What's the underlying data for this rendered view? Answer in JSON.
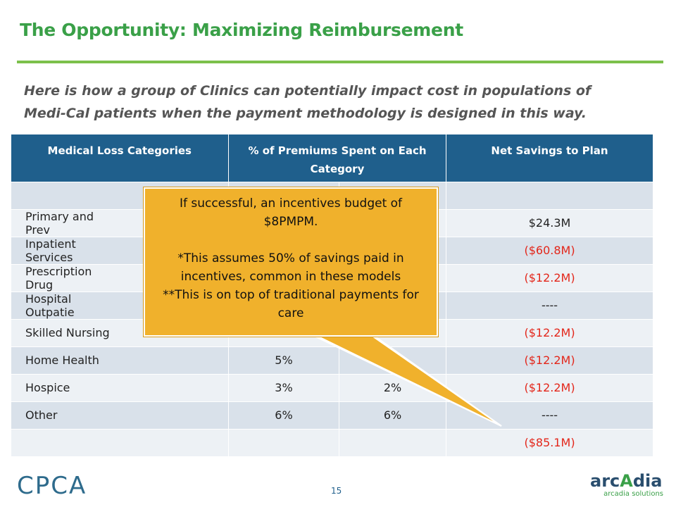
{
  "slide": {
    "title": "The Opportunity: Maximizing Reimbursement",
    "intro_line1": "Here is how a group of Clinics can potentially impact cost in populations of",
    "intro_line2": "Medi-Cal patients when the payment methodology is designed in this way.",
    "page_number": "15",
    "colors": {
      "title": "#3aa048",
      "rule": "#7cc04b",
      "header": "#1f5f8c",
      "negative": "#e3261a",
      "callout": "#f0b12c"
    }
  },
  "table": {
    "headers": {
      "col1": "Medical Loss Categories",
      "col2": "% of Premiums Spent on Each Category",
      "col3": "",
      "col4": "Net Savings to Plan"
    },
    "rows": [
      {
        "cat": "",
        "pct": "",
        "pct2": "",
        "savings": ""
      },
      {
        "cat": "Primary and Prev",
        "pct": "",
        "pct2": "",
        "savings": "$24.3M"
      },
      {
        "cat": "Inpatient Services",
        "pct": "",
        "pct2": "",
        "savings": "($60.8M)"
      },
      {
        "cat": "Prescription Drug",
        "pct": "",
        "pct2": "",
        "savings": "($12.2M)"
      },
      {
        "cat": "Hospital Outpatie",
        "pct": "",
        "pct2": "",
        "savings": "----"
      },
      {
        "cat": "Skilled Nursing",
        "pct": "",
        "pct2": "",
        "savings": "($12.2M)"
      },
      {
        "cat": "Home Health",
        "pct": "5%",
        "pct2": "",
        "savings": "($12.2M)"
      },
      {
        "cat": "Hospice",
        "pct": "3%",
        "pct2": "2%",
        "savings": "($12.2M)"
      },
      {
        "cat": "Other",
        "pct": "6%",
        "pct2": "6%",
        "savings": "----"
      },
      {
        "cat": "",
        "pct": "",
        "pct2": "",
        "savings": "($85.1M)"
      }
    ]
  },
  "callout": {
    "line1": "If successful, an incentives budget of $8PMPM.",
    "line2": "*This assumes 50% of savings paid in incentives, common in these models",
    "line3": "**This is on top of traditional payments for care"
  },
  "logos": {
    "left": "CPCA",
    "right_word_1": "arc",
    "right_word_2": "A",
    "right_word_3": "dia",
    "right_sub": "arcadia solutions"
  }
}
